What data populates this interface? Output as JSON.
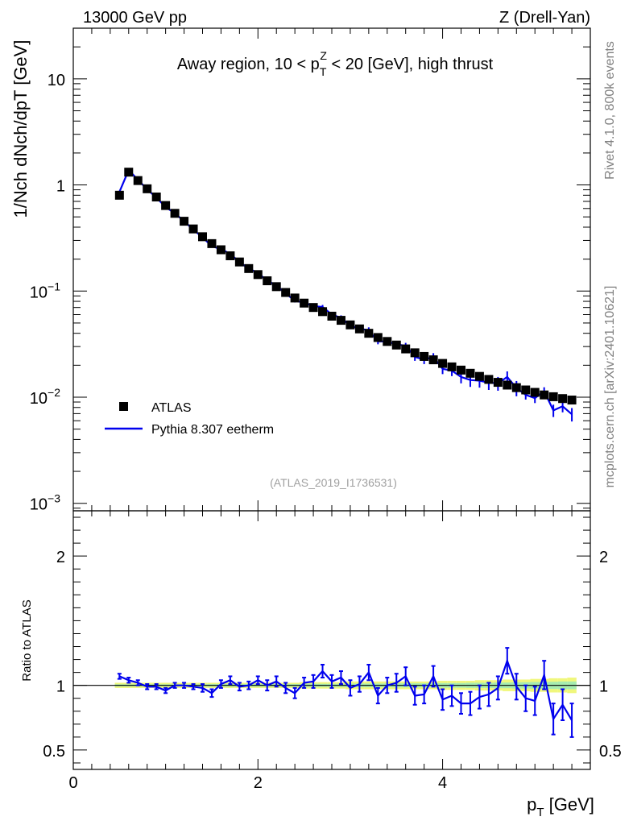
{
  "header": {
    "left": "13000 GeV pp",
    "right": "Z (Drell-Yan)"
  },
  "side_labels": {
    "rivet": "Rivet 4.1.0,  800k events",
    "mcplots": "mcplots.cern.ch [arXiv:2401.10621]"
  },
  "reference": "(ATLAS_2019_I1736531)",
  "colors": {
    "data": "#000000",
    "mc": "#0000ee",
    "band_outer": "#f0f77c",
    "band_inner": "#a6ecb0"
  },
  "chart_data": [
    {
      "type": "scatter",
      "panel": "main",
      "title": "Away region, 10 < pTZ < 20 [GeV], high thrust",
      "title_parts": {
        "pre": "Away region, 10 < p",
        "sup": "Z",
        "sub": "T",
        "post": " < 20 [GeV], high thrust"
      },
      "ylabel": "1/Nch dNch/dpT [GeV]",
      "yscale": "log",
      "xlim": [
        0,
        5.6
      ],
      "ylim": [
        0.00085,
        30
      ],
      "x_ticks": [
        0,
        2,
        4
      ],
      "y_ticks": [
        0.001,
        0.01,
        0.1,
        1,
        10
      ],
      "y_tick_labels": [
        {
          "base": "10",
          "exp": "−3"
        },
        {
          "base": "10",
          "exp": "−2"
        },
        {
          "base": "10",
          "exp": "−1"
        },
        {
          "base": "1",
          "exp": ""
        },
        {
          "base": "10",
          "exp": ""
        }
      ],
      "legend": [
        {
          "label": "ATLAS",
          "marker": "square"
        },
        {
          "label": "Pythia 8.307 eetherm",
          "marker": "line"
        }
      ],
      "series": [
        {
          "name": "ATLAS",
          "x": [
            0.5,
            0.6,
            0.7,
            0.8,
            0.9,
            1.0,
            1.1,
            1.2,
            1.3,
            1.4,
            1.5,
            1.6,
            1.7,
            1.8,
            1.9,
            2.0,
            2.1,
            2.2,
            2.3,
            2.4,
            2.5,
            2.6,
            2.7,
            2.8,
            2.9,
            3.0,
            3.1,
            3.2,
            3.3,
            3.4,
            3.5,
            3.6,
            3.7,
            3.8,
            3.9,
            4.0,
            4.1,
            4.2,
            4.3,
            4.4,
            4.5,
            4.6,
            4.7,
            4.8,
            4.9,
            5.0,
            5.1,
            5.2,
            5.3,
            5.4
          ],
          "values": [
            0.8,
            1.32,
            1.1,
            0.92,
            0.77,
            0.64,
            0.54,
            0.455,
            0.385,
            0.325,
            0.28,
            0.245,
            0.215,
            0.188,
            0.163,
            0.143,
            0.125,
            0.11,
            0.097,
            0.086,
            0.077,
            0.07,
            0.064,
            0.058,
            0.053,
            0.048,
            0.044,
            0.04,
            0.0365,
            0.0335,
            0.031,
            0.0285,
            0.0262,
            0.0242,
            0.0225,
            0.0208,
            0.0193,
            0.018,
            0.0168,
            0.0157,
            0.0147,
            0.0138,
            0.013,
            0.0123,
            0.0117,
            0.0111,
            0.0105,
            0.0101,
            0.0097,
            0.0094
          ]
        },
        {
          "name": "Pythia 8.307 eetherm",
          "x": [
            0.5,
            0.6,
            0.7,
            0.8,
            0.9,
            1.0,
            1.1,
            1.2,
            1.3,
            1.4,
            1.5,
            1.6,
            1.7,
            1.8,
            1.9,
            2.0,
            2.1,
            2.2,
            2.3,
            2.4,
            2.5,
            2.6,
            2.7,
            2.8,
            2.9,
            3.0,
            3.1,
            3.2,
            3.3,
            3.4,
            3.5,
            3.6,
            3.7,
            3.8,
            3.9,
            4.0,
            4.1,
            4.2,
            4.3,
            4.4,
            4.5,
            4.6,
            4.7,
            4.8,
            4.9,
            5.0,
            5.1,
            5.2,
            5.3,
            5.4
          ],
          "values": [
            0.86,
            1.38,
            1.12,
            0.91,
            0.76,
            0.62,
            0.54,
            0.455,
            0.38,
            0.32,
            0.265,
            0.248,
            0.225,
            0.187,
            0.163,
            0.148,
            0.125,
            0.113,
            0.095,
            0.081,
            0.078,
            0.072,
            0.071,
            0.06,
            0.056,
            0.047,
            0.0445,
            0.0425,
            0.0335,
            0.0335,
            0.0315,
            0.0305,
            0.024,
            0.0225,
            0.024,
            0.0185,
            0.0178,
            0.0155,
            0.0145,
            0.0143,
            0.0137,
            0.0135,
            0.0155,
            0.0122,
            0.0105,
            0.0098,
            0.0114,
            0.0075,
            0.0082,
            0.0069
          ],
          "errors": [
            0.02,
            0.02,
            0.015,
            0.012,
            0.01,
            0.008,
            0.007,
            0.006,
            0.005,
            0.005,
            0.004,
            0.004,
            0.004,
            0.003,
            0.003,
            0.003,
            0.003,
            0.003,
            0.003,
            0.003,
            0.003,
            0.003,
            0.003,
            0.003,
            0.003,
            0.002,
            0.002,
            0.003,
            0.002,
            0.002,
            0.002,
            0.002,
            0.002,
            0.002,
            0.002,
            0.002,
            0.002,
            0.002,
            0.002,
            0.002,
            0.002,
            0.002,
            0.002,
            0.002,
            0.001,
            0.001,
            0.001,
            0.001,
            0.001,
            0.001
          ]
        }
      ]
    },
    {
      "type": "line",
      "panel": "ratio",
      "ylabel": "Ratio to ATLAS",
      "xlabel": "pT [GeV]",
      "xlabel_parts": {
        "pre": "p",
        "sub": "T",
        "post": " [GeV]"
      },
      "xlim": [
        0,
        5.6
      ],
      "ylim": [
        0.35,
        2.35
      ],
      "x_ticks": [
        0,
        2,
        4
      ],
      "y_ticks": [
        0.5,
        1,
        2
      ],
      "y_tick_labels": [
        "0.5",
        "1",
        "2"
      ],
      "reference_line": 1,
      "series": [
        {
          "name": "Pythia 8.307 eetherm / ATLAS",
          "x": [
            0.5,
            0.6,
            0.7,
            0.8,
            0.9,
            1.0,
            1.1,
            1.2,
            1.3,
            1.4,
            1.5,
            1.6,
            1.7,
            1.8,
            1.9,
            2.0,
            2.1,
            2.2,
            2.3,
            2.4,
            2.5,
            2.6,
            2.7,
            2.8,
            2.9,
            3.0,
            3.1,
            3.2,
            3.3,
            3.4,
            3.5,
            3.6,
            3.7,
            3.8,
            3.9,
            4.0,
            4.1,
            4.2,
            4.3,
            4.4,
            4.5,
            4.6,
            4.7,
            4.8,
            4.9,
            5.0,
            5.1,
            5.2,
            5.3,
            5.4
          ],
          "values": [
            1.07,
            1.04,
            1.02,
            0.99,
            0.99,
            0.96,
            1.0,
            1.0,
            0.99,
            0.98,
            0.94,
            1.01,
            1.04,
            0.99,
            1.0,
            1.04,
            1.0,
            1.03,
            0.98,
            0.94,
            1.02,
            1.03,
            1.11,
            1.03,
            1.06,
            0.98,
            1.01,
            1.1,
            0.92,
            1.0,
            1.02,
            1.07,
            0.92,
            0.93,
            1.07,
            0.89,
            0.92,
            0.86,
            0.86,
            0.91,
            0.93,
            0.98,
            1.19,
            0.99,
            0.9,
            0.88,
            1.08,
            0.74,
            0.85,
            0.73
          ],
          "errors": [
            0.02,
            0.02,
            0.02,
            0.02,
            0.02,
            0.02,
            0.02,
            0.02,
            0.02,
            0.03,
            0.03,
            0.03,
            0.03,
            0.03,
            0.03,
            0.03,
            0.04,
            0.04,
            0.04,
            0.04,
            0.04,
            0.05,
            0.05,
            0.05,
            0.05,
            0.06,
            0.06,
            0.06,
            0.06,
            0.06,
            0.07,
            0.07,
            0.07,
            0.07,
            0.08,
            0.08,
            0.08,
            0.08,
            0.09,
            0.09,
            0.09,
            0.09,
            0.1,
            0.1,
            0.1,
            0.11,
            0.11,
            0.12,
            0.12,
            0.13
          ],
          "band_outer": [
            0.02,
            0.02,
            0.02,
            0.02,
            0.02,
            0.02,
            0.02,
            0.02,
            0.02,
            0.02,
            0.02,
            0.02,
            0.02,
            0.02,
            0.02,
            0.02,
            0.02,
            0.02,
            0.02,
            0.02,
            0.025,
            0.025,
            0.025,
            0.025,
            0.025,
            0.03,
            0.03,
            0.03,
            0.03,
            0.03,
            0.03,
            0.03,
            0.03,
            0.03,
            0.03,
            0.035,
            0.035,
            0.035,
            0.035,
            0.04,
            0.04,
            0.04,
            0.045,
            0.045,
            0.045,
            0.05,
            0.05,
            0.055,
            0.055,
            0.06
          ],
          "band_inner": [
            0.008,
            0.008,
            0.008,
            0.008,
            0.008,
            0.008,
            0.008,
            0.008,
            0.008,
            0.008,
            0.01,
            0.01,
            0.01,
            0.01,
            0.01,
            0.01,
            0.01,
            0.01,
            0.01,
            0.01,
            0.012,
            0.012,
            0.012,
            0.012,
            0.012,
            0.014,
            0.014,
            0.014,
            0.014,
            0.014,
            0.016,
            0.016,
            0.016,
            0.016,
            0.016,
            0.018,
            0.018,
            0.018,
            0.02,
            0.02,
            0.02,
            0.022,
            0.022,
            0.024,
            0.024,
            0.026,
            0.026,
            0.028,
            0.03,
            0.03
          ]
        }
      ]
    }
  ]
}
